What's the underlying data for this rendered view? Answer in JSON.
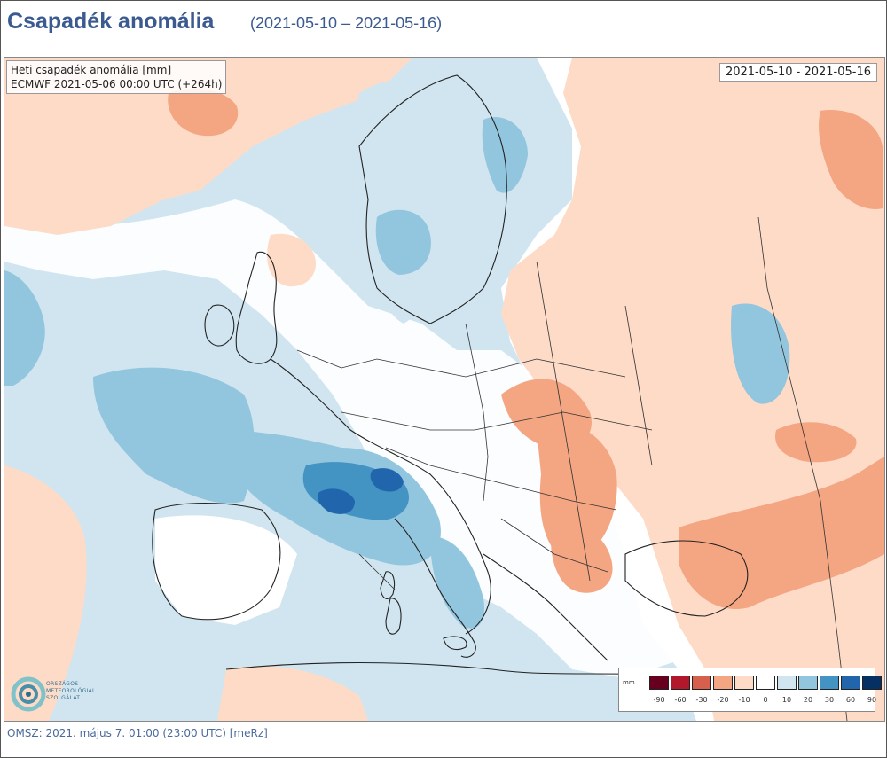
{
  "header": {
    "title": "Csapadék anomália",
    "date_range": "(2021-05-10 – 2021-05-16)"
  },
  "map": {
    "info_line1": "Heti csapadék anomália [mm]",
    "info_line2": "ECMWF 2021-05-06 00:00 UTC (+264h)",
    "period_label": "2021-05-10 - 2021-05-16"
  },
  "legend": {
    "unit": "mm",
    "colors": [
      "#67001f",
      "#b2182b",
      "#d6604d",
      "#f4a582",
      "#fddbc7",
      "#ffffff",
      "#d1e5f0",
      "#92c5de",
      "#4393c3",
      "#2166ac",
      "#053061"
    ],
    "labels": [
      "-90",
      "-60",
      "-30",
      "-20",
      "-10",
      "0",
      "10",
      "20",
      "30",
      "60",
      "90"
    ]
  },
  "logo": {
    "line1": "ORSZÁGOS",
    "line2": "METEOROLÓGIAI",
    "line3": "SZOLGÁLAT"
  },
  "footer": {
    "text": "OMSZ: 2021. május 7. 01:00 (23:00  UTC)  [meRz]"
  }
}
